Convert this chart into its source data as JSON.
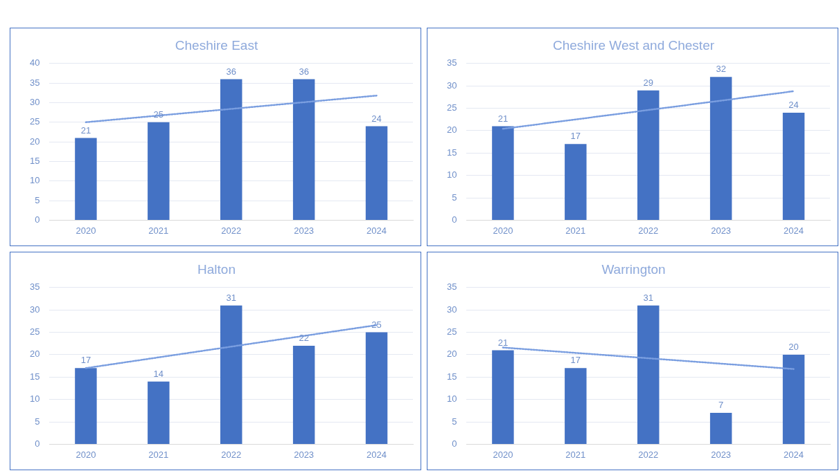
{
  "chart_data": [
    {
      "type": "bar",
      "title": "Cheshire East",
      "categories": [
        "2020",
        "2021",
        "2022",
        "2023",
        "2024"
      ],
      "ylim": [
        0,
        40
      ],
      "yticks": [
        0,
        5,
        10,
        15,
        20,
        25,
        30,
        35,
        40
      ],
      "grid": "y",
      "series": [
        {
          "color": "#4472c4",
          "values": [
            21,
            25,
            36,
            36,
            24
          ],
          "value_labels": [
            "21",
            "25",
            "36",
            "36",
            "24"
          ]
        },
        {
          "type": "line",
          "values": [
            25,
            null,
            null,
            null,
            31.8
          ],
          "color": "#7a9ee0",
          "line_style": "dotted",
          "marker": "none"
        }
      ]
    },
    {
      "type": "bar",
      "title": "Cheshire West and Chester",
      "categories": [
        "2020",
        "2021",
        "2022",
        "2023",
        "2024"
      ],
      "ylim": [
        0,
        35
      ],
      "yticks": [
        0,
        5,
        10,
        15,
        20,
        25,
        30,
        35
      ],
      "grid": "y",
      "series": [
        {
          "color": "#4472c4",
          "values": [
            21,
            17,
            29,
            32,
            24
          ],
          "value_labels": [
            "21",
            "17",
            "29",
            "32",
            "24"
          ]
        },
        {
          "type": "line",
          "values": [
            20.4,
            null,
            null,
            null,
            28.8
          ],
          "color": "#7a9ee0",
          "line_style": "dotted",
          "marker": "none"
        }
      ]
    },
    {
      "type": "bar",
      "title": "Halton",
      "categories": [
        "2020",
        "2021",
        "2022",
        "2023",
        "2024"
      ],
      "ylim": [
        0,
        35
      ],
      "yticks": [
        0,
        5,
        10,
        15,
        20,
        25,
        30,
        35
      ],
      "grid": "y",
      "series": [
        {
          "color": "#4472c4",
          "values": [
            17,
            14,
            31,
            22,
            25
          ],
          "value_labels": [
            "17",
            "14",
            "31",
            "22",
            "25"
          ]
        },
        {
          "type": "line",
          "values": [
            17,
            null,
            null,
            null,
            26.6
          ],
          "color": "#7a9ee0",
          "line_style": "dotted",
          "marker": "none"
        }
      ]
    },
    {
      "type": "bar",
      "title": "Warrington",
      "categories": [
        "2020",
        "2021",
        "2022",
        "2023",
        "2024"
      ],
      "ylim": [
        0,
        35
      ],
      "yticks": [
        0,
        5,
        10,
        15,
        20,
        25,
        30,
        35
      ],
      "grid": "y",
      "series": [
        {
          "color": "#4472c4",
          "values": [
            21,
            17,
            31,
            7,
            20
          ],
          "value_labels": [
            "21",
            "17",
            "31",
            "7",
            "20"
          ]
        },
        {
          "type": "line",
          "values": [
            21.6,
            null,
            null,
            null,
            16.8
          ],
          "color": "#7a9ee0",
          "line_style": "dotted",
          "marker": "none"
        }
      ]
    }
  ]
}
